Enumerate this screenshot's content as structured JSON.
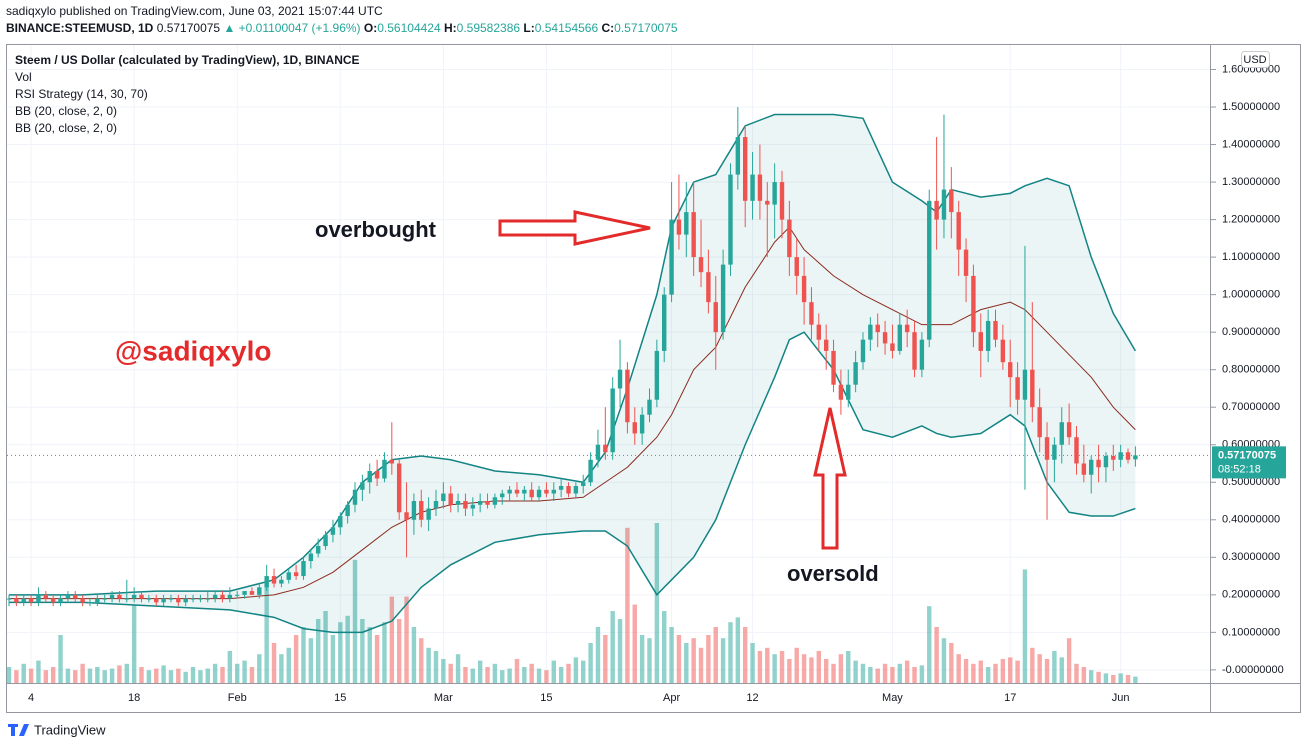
{
  "header": {
    "published": "sadiqxylo published on TradingView.com, June 03, 2021 15:07:44 UTC",
    "symbol": "BINANCE:STEEMUSD, 1D",
    "last": "0.57170075",
    "change": "▲ +0.01100047 (+1.96%)",
    "ohlc": [
      "O:",
      "0.56104424",
      "H:",
      "0.59582386",
      "L:",
      "0.54154566",
      "C:",
      "0.57170075"
    ]
  },
  "chart_data": {
    "type": "candlestick",
    "title": "Steem / US Dollar (calculated by TradingView), 1D, BINANCE",
    "legend": [
      "Vol",
      "RSI Strategy (14, 30, 70)",
      "BB (20, close, 2, 0)",
      "BB (20, close, 2, 0)"
    ],
    "currency": "USD",
    "up_color": "#26a69a",
    "down_color": "#ef5350",
    "band_color": "#138484",
    "basis_color": "#8b2a1f",
    "annotations": {
      "overbought": "overbought",
      "oversold": "oversold",
      "watermark": "@sadiqxylo"
    },
    "last_price_label": "0.57170075",
    "countdown": "08:52:18",
    "xlim": [
      0,
      163
    ],
    "ylim": [
      -0.035,
      1.668
    ],
    "xticks": [
      {
        "value": 3,
        "label": "4"
      },
      {
        "value": 17,
        "label": "18"
      },
      {
        "value": 31,
        "label": "Feb"
      },
      {
        "value": 45,
        "label": "15"
      },
      {
        "value": 59,
        "label": "Mar"
      },
      {
        "value": 73,
        "label": "15"
      },
      {
        "value": 90,
        "label": "Apr"
      },
      {
        "value": 101,
        "label": "12"
      },
      {
        "value": 120,
        "label": "May"
      },
      {
        "value": 136,
        "label": "17"
      },
      {
        "value": 151,
        "label": "Jun"
      }
    ],
    "yticks": [
      {
        "value": 1.6,
        "label": "1.60000000"
      },
      {
        "value": 1.5,
        "label": "1.50000000"
      },
      {
        "value": 1.4,
        "label": "1.40000000"
      },
      {
        "value": 1.3,
        "label": "1.30000000"
      },
      {
        "value": 1.2,
        "label": "1.20000000"
      },
      {
        "value": 1.1,
        "label": "1.10000000"
      },
      {
        "value": 1.0,
        "label": "1.00000000"
      },
      {
        "value": 0.9,
        "label": "0.90000000"
      },
      {
        "value": 0.8,
        "label": "0.80000000"
      },
      {
        "value": 0.7,
        "label": "0.70000000"
      },
      {
        "value": 0.6,
        "label": "0.60000000"
      },
      {
        "value": 0.5,
        "label": "0.50000000"
      },
      {
        "value": 0.4,
        "label": "0.40000000"
      },
      {
        "value": 0.3,
        "label": "0.30000000"
      },
      {
        "value": 0.2,
        "label": "0.20000000"
      },
      {
        "value": 0.1,
        "label": "0.10000000"
      },
      {
        "value": 0,
        "label": "-0.00000000"
      }
    ],
    "grid": true,
    "x": [
      0,
      1,
      2,
      3,
      4,
      5,
      6,
      7,
      8,
      9,
      10,
      11,
      12,
      13,
      14,
      15,
      16,
      17,
      18,
      19,
      20,
      21,
      22,
      23,
      24,
      25,
      26,
      27,
      28,
      29,
      30,
      31,
      32,
      33,
      34,
      35,
      36,
      37,
      38,
      39,
      40,
      41,
      42,
      43,
      44,
      45,
      46,
      47,
      48,
      49,
      50,
      51,
      52,
      53,
      54,
      55,
      56,
      57,
      58,
      59,
      60,
      61,
      62,
      63,
      64,
      65,
      66,
      67,
      68,
      69,
      70,
      71,
      72,
      73,
      74,
      75,
      76,
      77,
      78,
      79,
      80,
      81,
      82,
      83,
      84,
      85,
      86,
      87,
      88,
      89,
      90,
      91,
      92,
      93,
      94,
      95,
      96,
      97,
      98,
      99,
      100,
      101,
      102,
      103,
      104,
      105,
      106,
      107,
      108,
      109,
      110,
      111,
      112,
      113,
      114,
      115,
      116,
      117,
      118,
      119,
      120,
      121,
      122,
      123,
      124,
      125,
      126,
      127,
      128,
      129,
      130,
      131,
      132,
      133,
      134,
      135,
      136,
      137,
      138,
      139,
      140,
      141,
      142,
      143,
      144,
      145,
      146,
      147,
      148,
      149,
      150,
      151,
      152,
      153
    ],
    "candles": [
      [
        0.19,
        0.2,
        0.17,
        0.19
      ],
      [
        0.19,
        0.2,
        0.17,
        0.18
      ],
      [
        0.18,
        0.2,
        0.17,
        0.19
      ],
      [
        0.19,
        0.2,
        0.17,
        0.18
      ],
      [
        0.18,
        0.22,
        0.17,
        0.2
      ],
      [
        0.2,
        0.21,
        0.18,
        0.19
      ],
      [
        0.19,
        0.2,
        0.17,
        0.18
      ],
      [
        0.18,
        0.2,
        0.17,
        0.19
      ],
      [
        0.19,
        0.21,
        0.18,
        0.2
      ],
      [
        0.2,
        0.21,
        0.18,
        0.19
      ],
      [
        0.19,
        0.2,
        0.17,
        0.18
      ],
      [
        0.18,
        0.19,
        0.17,
        0.18
      ],
      [
        0.18,
        0.2,
        0.17,
        0.19
      ],
      [
        0.19,
        0.2,
        0.18,
        0.19
      ],
      [
        0.19,
        0.21,
        0.18,
        0.2
      ],
      [
        0.2,
        0.21,
        0.18,
        0.19
      ],
      [
        0.19,
        0.24,
        0.18,
        0.19
      ],
      [
        0.19,
        0.22,
        0.18,
        0.2
      ],
      [
        0.2,
        0.21,
        0.18,
        0.19
      ],
      [
        0.19,
        0.2,
        0.18,
        0.19
      ],
      [
        0.19,
        0.2,
        0.17,
        0.18
      ],
      [
        0.18,
        0.2,
        0.17,
        0.19
      ],
      [
        0.19,
        0.2,
        0.18,
        0.19
      ],
      [
        0.19,
        0.2,
        0.17,
        0.18
      ],
      [
        0.18,
        0.2,
        0.17,
        0.19
      ],
      [
        0.19,
        0.2,
        0.18,
        0.19
      ],
      [
        0.19,
        0.2,
        0.18,
        0.19
      ],
      [
        0.19,
        0.21,
        0.18,
        0.19
      ],
      [
        0.19,
        0.21,
        0.18,
        0.2
      ],
      [
        0.2,
        0.21,
        0.18,
        0.19
      ],
      [
        0.19,
        0.22,
        0.18,
        0.2
      ],
      [
        0.2,
        0.21,
        0.19,
        0.2
      ],
      [
        0.2,
        0.21,
        0.19,
        0.21
      ],
      [
        0.21,
        0.22,
        0.2,
        0.2
      ],
      [
        0.2,
        0.23,
        0.19,
        0.22
      ],
      [
        0.22,
        0.28,
        0.21,
        0.25
      ],
      [
        0.25,
        0.27,
        0.22,
        0.23
      ],
      [
        0.23,
        0.25,
        0.22,
        0.24
      ],
      [
        0.24,
        0.27,
        0.23,
        0.26
      ],
      [
        0.26,
        0.28,
        0.24,
        0.25
      ],
      [
        0.25,
        0.3,
        0.24,
        0.29
      ],
      [
        0.29,
        0.32,
        0.27,
        0.31
      ],
      [
        0.31,
        0.35,
        0.3,
        0.33
      ],
      [
        0.33,
        0.37,
        0.32,
        0.36
      ],
      [
        0.36,
        0.4,
        0.34,
        0.38
      ],
      [
        0.38,
        0.42,
        0.36,
        0.41
      ],
      [
        0.41,
        0.45,
        0.39,
        0.44
      ],
      [
        0.44,
        0.5,
        0.42,
        0.48
      ],
      [
        0.48,
        0.52,
        0.45,
        0.5
      ],
      [
        0.5,
        0.55,
        0.47,
        0.53
      ],
      [
        0.53,
        0.56,
        0.49,
        0.51
      ],
      [
        0.51,
        0.58,
        0.5,
        0.56
      ],
      [
        0.56,
        0.66,
        0.52,
        0.55
      ],
      [
        0.55,
        0.56,
        0.4,
        0.42
      ],
      [
        0.42,
        0.5,
        0.3,
        0.4
      ],
      [
        0.4,
        0.47,
        0.36,
        0.45
      ],
      [
        0.45,
        0.48,
        0.38,
        0.4
      ],
      [
        0.4,
        0.46,
        0.37,
        0.43
      ],
      [
        0.43,
        0.48,
        0.41,
        0.45
      ],
      [
        0.45,
        0.5,
        0.43,
        0.47
      ],
      [
        0.47,
        0.49,
        0.42,
        0.44
      ],
      [
        0.44,
        0.47,
        0.42,
        0.45
      ],
      [
        0.45,
        0.47,
        0.41,
        0.43
      ],
      [
        0.43,
        0.46,
        0.41,
        0.44
      ],
      [
        0.44,
        0.47,
        0.42,
        0.45
      ],
      [
        0.45,
        0.47,
        0.43,
        0.44
      ],
      [
        0.44,
        0.47,
        0.43,
        0.46
      ],
      [
        0.46,
        0.48,
        0.44,
        0.47
      ],
      [
        0.47,
        0.49,
        0.45,
        0.48
      ],
      [
        0.48,
        0.5,
        0.46,
        0.47
      ],
      [
        0.47,
        0.49,
        0.45,
        0.48
      ],
      [
        0.48,
        0.5,
        0.45,
        0.46
      ],
      [
        0.46,
        0.49,
        0.45,
        0.48
      ],
      [
        0.48,
        0.5,
        0.46,
        0.47
      ],
      [
        0.47,
        0.5,
        0.45,
        0.48
      ],
      [
        0.48,
        0.51,
        0.46,
        0.49
      ],
      [
        0.49,
        0.5,
        0.46,
        0.47
      ],
      [
        0.47,
        0.5,
        0.46,
        0.49
      ],
      [
        0.49,
        0.52,
        0.47,
        0.5
      ],
      [
        0.5,
        0.58,
        0.49,
        0.56
      ],
      [
        0.56,
        0.64,
        0.54,
        0.6
      ],
      [
        0.6,
        0.7,
        0.56,
        0.58
      ],
      [
        0.58,
        0.78,
        0.56,
        0.75
      ],
      [
        0.75,
        0.88,
        0.7,
        0.8
      ],
      [
        0.8,
        0.82,
        0.63,
        0.66
      ],
      [
        0.66,
        0.7,
        0.6,
        0.63
      ],
      [
        0.63,
        0.7,
        0.6,
        0.68
      ],
      [
        0.68,
        0.75,
        0.66,
        0.72
      ],
      [
        0.72,
        0.88,
        0.7,
        0.85
      ],
      [
        0.85,
        1.02,
        0.82,
        1.0
      ],
      [
        1.0,
        1.3,
        0.98,
        1.2
      ],
      [
        1.2,
        1.32,
        1.12,
        1.16
      ],
      [
        1.16,
        1.3,
        1.1,
        1.22
      ],
      [
        1.22,
        1.3,
        1.05,
        1.1
      ],
      [
        1.1,
        1.2,
        1.02,
        1.06
      ],
      [
        1.06,
        1.12,
        0.95,
        0.98
      ],
      [
        0.98,
        1.05,
        0.8,
        0.9
      ],
      [
        0.9,
        1.12,
        0.88,
        1.08
      ],
      [
        1.08,
        1.35,
        1.05,
        1.32
      ],
      [
        1.32,
        1.5,
        1.28,
        1.42
      ],
      [
        1.42,
        1.45,
        1.18,
        1.25
      ],
      [
        1.25,
        1.38,
        1.2,
        1.32
      ],
      [
        1.32,
        1.4,
        1.2,
        1.25
      ],
      [
        1.25,
        1.3,
        1.1,
        1.24
      ],
      [
        1.24,
        1.35,
        1.15,
        1.3
      ],
      [
        1.3,
        1.33,
        1.15,
        1.2
      ],
      [
        1.2,
        1.25,
        1.05,
        1.1
      ],
      [
        1.1,
        1.15,
        1.0,
        1.05
      ],
      [
        1.05,
        1.1,
        0.92,
        0.98
      ],
      [
        0.98,
        1.02,
        0.88,
        0.92
      ],
      [
        0.92,
        0.95,
        0.85,
        0.88
      ],
      [
        0.88,
        0.92,
        0.8,
        0.85
      ],
      [
        0.85,
        0.88,
        0.74,
        0.76
      ],
      [
        0.76,
        0.8,
        0.68,
        0.72
      ],
      [
        0.72,
        0.8,
        0.7,
        0.76
      ],
      [
        0.76,
        0.85,
        0.74,
        0.82
      ],
      [
        0.82,
        0.9,
        0.8,
        0.88
      ],
      [
        0.88,
        0.94,
        0.85,
        0.92
      ],
      [
        0.92,
        0.95,
        0.86,
        0.9
      ],
      [
        0.9,
        0.93,
        0.84,
        0.87
      ],
      [
        0.87,
        0.92,
        0.83,
        0.85
      ],
      [
        0.85,
        0.95,
        0.84,
        0.92
      ],
      [
        0.92,
        0.96,
        0.86,
        0.9
      ],
      [
        0.9,
        0.93,
        0.78,
        0.8
      ],
      [
        0.8,
        0.9,
        0.78,
        0.88
      ],
      [
        0.88,
        1.28,
        0.86,
        1.25
      ],
      [
        1.25,
        1.42,
        1.12,
        1.2
      ],
      [
        1.2,
        1.48,
        1.15,
        1.28
      ],
      [
        1.28,
        1.34,
        1.15,
        1.22
      ],
      [
        1.22,
        1.25,
        1.05,
        1.12
      ],
      [
        1.12,
        1.15,
        0.98,
        1.05
      ],
      [
        1.05,
        1.08,
        0.86,
        0.9
      ],
      [
        0.9,
        0.95,
        0.78,
        0.85
      ],
      [
        0.85,
        0.96,
        0.82,
        0.93
      ],
      [
        0.93,
        0.96,
        0.86,
        0.88
      ],
      [
        0.88,
        0.92,
        0.8,
        0.82
      ],
      [
        0.82,
        0.88,
        0.7,
        0.78
      ],
      [
        0.78,
        0.82,
        0.68,
        0.72
      ],
      [
        0.72,
        1.13,
        0.48,
        0.8
      ],
      [
        0.8,
        0.98,
        0.66,
        0.7
      ],
      [
        0.7,
        0.75,
        0.58,
        0.62
      ],
      [
        0.62,
        0.66,
        0.4,
        0.56
      ],
      [
        0.56,
        0.62,
        0.5,
        0.6
      ],
      [
        0.6,
        0.7,
        0.55,
        0.66
      ],
      [
        0.66,
        0.71,
        0.6,
        0.62
      ],
      [
        0.62,
        0.65,
        0.52,
        0.55
      ],
      [
        0.55,
        0.6,
        0.5,
        0.52
      ],
      [
        0.52,
        0.57,
        0.47,
        0.56
      ],
      [
        0.56,
        0.6,
        0.5,
        0.54
      ],
      [
        0.54,
        0.58,
        0.5,
        0.57
      ],
      [
        0.57,
        0.6,
        0.53,
        0.56
      ],
      [
        0.56,
        0.6,
        0.54,
        0.58
      ],
      [
        0.58,
        0.59,
        0.55,
        0.56
      ],
      [
        0.56104424,
        0.59582386,
        0.54154566,
        0.57170075
      ]
    ],
    "volume": [
      10,
      8,
      12,
      9,
      14,
      8,
      10,
      30,
      9,
      8,
      12,
      9,
      10,
      8,
      9,
      11,
      12,
      49,
      10,
      8,
      9,
      11,
      8,
      9,
      7,
      10,
      8,
      9,
      12,
      10,
      20,
      12,
      14,
      10,
      18,
      64,
      25,
      18,
      22,
      30,
      35,
      28,
      40,
      45,
      30,
      38,
      42,
      77,
      40,
      35,
      30,
      38,
      54,
      40,
      54,
      35,
      28,
      22,
      20,
      15,
      12,
      18,
      10,
      9,
      14,
      10,
      12,
      8,
      9,
      15,
      10,
      12,
      9,
      8,
      14,
      10,
      12,
      16,
      14,
      25,
      35,
      30,
      45,
      40,
      97,
      49,
      30,
      28,
      100,
      45,
      35,
      30,
      25,
      28,
      22,
      30,
      35,
      28,
      38,
      41,
      35,
      25,
      20,
      22,
      18,
      20,
      15,
      22,
      18,
      16,
      20,
      15,
      12,
      18,
      20,
      14,
      12,
      10,
      9,
      12,
      10,
      12,
      14,
      10,
      11,
      48,
      35,
      28,
      25,
      18,
      15,
      12,
      14,
      10,
      12,
      15,
      16,
      14,
      71,
      22,
      18,
      15,
      20,
      16,
      28,
      12,
      10,
      8,
      7,
      6,
      5,
      6,
      5,
      4
    ],
    "bands": {
      "x": [
        0,
        10,
        20,
        30,
        36,
        40,
        44,
        48,
        52,
        56,
        60,
        66,
        72,
        78,
        81,
        84,
        88,
        90,
        93,
        96,
        100,
        104,
        106,
        108,
        112,
        116,
        120,
        124,
        126,
        128,
        132,
        136,
        138,
        141,
        144,
        147,
        150,
        153
      ],
      "upper": [
        0.2,
        0.2,
        0.21,
        0.21,
        0.24,
        0.3,
        0.38,
        0.5,
        0.56,
        0.57,
        0.56,
        0.53,
        0.52,
        0.5,
        0.58,
        0.75,
        1.0,
        1.18,
        1.3,
        1.32,
        1.45,
        1.48,
        1.48,
        1.48,
        1.48,
        1.47,
        1.3,
        1.25,
        1.22,
        1.28,
        1.26,
        1.27,
        1.29,
        1.31,
        1.29,
        1.1,
        0.95,
        0.85
      ],
      "lower": [
        0.18,
        0.18,
        0.17,
        0.16,
        0.14,
        0.11,
        0.1,
        0.1,
        0.13,
        0.22,
        0.28,
        0.34,
        0.36,
        0.37,
        0.37,
        0.33,
        0.2,
        0.24,
        0.3,
        0.4,
        0.6,
        0.78,
        0.88,
        0.9,
        0.8,
        0.64,
        0.62,
        0.65,
        0.63,
        0.62,
        0.63,
        0.68,
        0.65,
        0.5,
        0.42,
        0.41,
        0.41,
        0.43
      ],
      "basis": [
        0.19,
        0.19,
        0.19,
        0.19,
        0.2,
        0.22,
        0.26,
        0.32,
        0.38,
        0.42,
        0.44,
        0.45,
        0.45,
        0.46,
        0.5,
        0.54,
        0.62,
        0.68,
        0.8,
        0.86,
        1.02,
        1.14,
        1.18,
        1.12,
        1.05,
        1.0,
        0.96,
        0.92,
        0.92,
        0.92,
        0.96,
        0.98,
        0.96,
        0.9,
        0.84,
        0.78,
        0.7,
        0.64
      ]
    }
  },
  "footer": {
    "brand": "TradingView"
  }
}
